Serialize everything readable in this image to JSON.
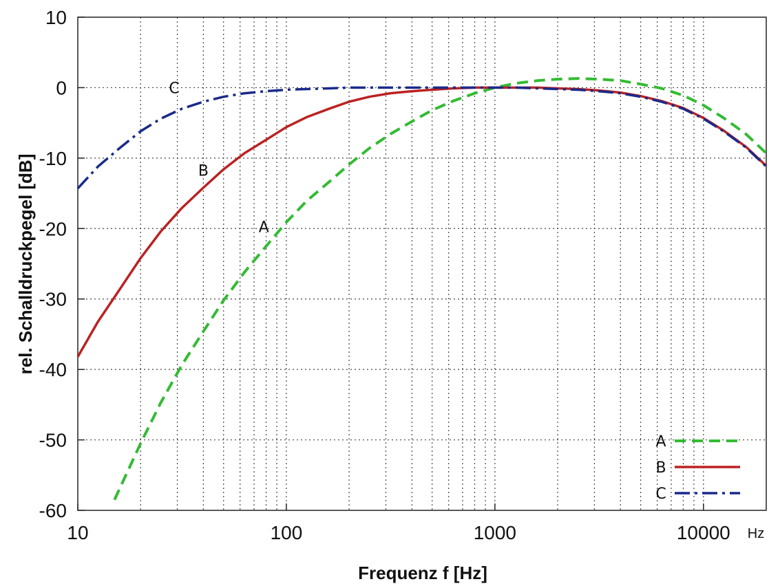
{
  "chart_data": {
    "type": "line",
    "title": "",
    "xlabel": "Frequenz f [Hz]",
    "ylabel": "rel. Schalldruckpegel [dB]",
    "x_unit_label": "Hz",
    "xscale": "log",
    "xlim": [
      10,
      20000
    ],
    "ylim": [
      -60,
      10
    ],
    "grid": true,
    "x_ticks": [
      10,
      100,
      1000,
      10000
    ],
    "x_tick_labels": [
      "10",
      "100",
      "1000",
      "10000"
    ],
    "y_ticks": [
      10,
      0,
      -10,
      -20,
      -30,
      -40,
      -50,
      -60
    ],
    "y_tick_labels": [
      "10",
      "0",
      "-10",
      "-20",
      "-30",
      "-40",
      "-50",
      "-60"
    ],
    "legend_position": "bottom-right",
    "series": [
      {
        "name": "A",
        "color": "#33bb33",
        "style": "dashed",
        "x": [
          15,
          20,
          25,
          31.5,
          40,
          50,
          63,
          80,
          100,
          125,
          160,
          200,
          250,
          315,
          400,
          500,
          630,
          800,
          1000,
          1250,
          1600,
          2000,
          2500,
          3150,
          4000,
          5000,
          6300,
          8000,
          10000,
          12500,
          16000,
          20000
        ],
        "y": [
          -58.5,
          -50.5,
          -44.7,
          -39.4,
          -34.6,
          -30.2,
          -26.2,
          -22.5,
          -19.1,
          -16.1,
          -13.4,
          -10.9,
          -8.6,
          -6.6,
          -4.8,
          -3.2,
          -1.9,
          -0.8,
          0.0,
          0.6,
          1.0,
          1.2,
          1.3,
          1.2,
          1.0,
          0.5,
          -0.1,
          -1.1,
          -2.5,
          -4.3,
          -6.6,
          -9.3
        ],
        "curve_label": "A"
      },
      {
        "name": "B",
        "color": "#bb2222",
        "style": "solid",
        "x": [
          10,
          12.5,
          16,
          20,
          25,
          31.5,
          40,
          50,
          63,
          80,
          100,
          125,
          160,
          200,
          250,
          315,
          400,
          500,
          630,
          800,
          1000,
          1250,
          1600,
          2000,
          2500,
          3150,
          4000,
          5000,
          6300,
          8000,
          10000,
          12500,
          16000,
          20000
        ],
        "y": [
          -38.2,
          -33.2,
          -28.5,
          -24.2,
          -20.4,
          -17.1,
          -14.2,
          -11.6,
          -9.3,
          -7.4,
          -5.6,
          -4.2,
          -3.0,
          -2.0,
          -1.3,
          -0.8,
          -0.5,
          -0.3,
          -0.1,
          0.0,
          0.0,
          0.0,
          0.0,
          -0.1,
          -0.2,
          -0.4,
          -0.7,
          -1.2,
          -1.9,
          -2.9,
          -4.3,
          -6.1,
          -8.4,
          -11.1
        ],
        "curve_label": "B"
      },
      {
        "name": "C",
        "color": "#1a2a8a",
        "style": "dash-dot",
        "x": [
          10,
          12.5,
          16,
          20,
          25,
          31.5,
          40,
          50,
          63,
          80,
          100,
          125,
          160,
          200,
          250,
          315,
          400,
          500,
          630,
          800,
          1000,
          1250,
          1600,
          2000,
          2500,
          3150,
          4000,
          5000,
          6300,
          8000,
          10000,
          12500,
          16000,
          20000
        ],
        "y": [
          -14.3,
          -11.2,
          -8.5,
          -6.2,
          -4.4,
          -3.0,
          -2.0,
          -1.3,
          -0.8,
          -0.5,
          -0.3,
          -0.2,
          -0.1,
          0.0,
          0.0,
          0.0,
          0.0,
          0.0,
          0.0,
          0.0,
          0.0,
          0.0,
          -0.1,
          -0.2,
          -0.3,
          -0.5,
          -0.8,
          -1.3,
          -2.0,
          -3.0,
          -4.4,
          -6.2,
          -8.5,
          -11.2
        ],
        "curve_label": "C"
      }
    ]
  }
}
